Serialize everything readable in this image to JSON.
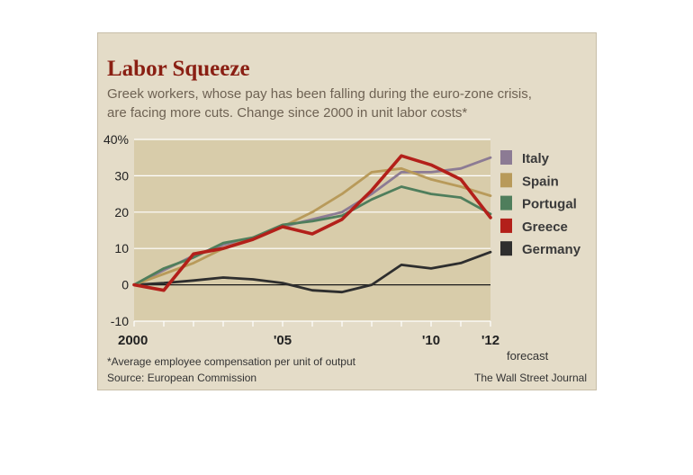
{
  "chart_data": {
    "type": "line",
    "title": "Labor Squeeze",
    "subtitle_line1": "Greek workers, whose pay has been falling during the euro-zone crisis,",
    "subtitle_line2": "are facing more cuts. Change since 2000 in unit labor costs*",
    "x": [
      2000,
      2001,
      2002,
      2003,
      2004,
      2005,
      2006,
      2007,
      2008,
      2009,
      2010,
      2011,
      2012
    ],
    "x_tick_labels": [
      {
        "value": 2000,
        "label": "2000"
      },
      {
        "value": 2005,
        "label": "'05"
      },
      {
        "value": 2010,
        "label": "'10"
      },
      {
        "value": 2012,
        "label": "'12"
      }
    ],
    "forecast_label": "forecast",
    "y_tick_labels": [
      "40%",
      "30",
      "20",
      "10",
      "0",
      "-10"
    ],
    "y_ticks": [
      40,
      30,
      20,
      10,
      0,
      -10
    ],
    "ylim": [
      -10,
      40
    ],
    "xlim": [
      2000,
      2012
    ],
    "grid": true,
    "legend_position": "right",
    "series": [
      {
        "name": "Italy",
        "color": "#8c7b94",
        "values": [
          0,
          4,
          8,
          11,
          13,
          16,
          18,
          20,
          25,
          31,
          31,
          32,
          35
        ]
      },
      {
        "name": "Spain",
        "color": "#b89a5a",
        "values": [
          0,
          3,
          6,
          10,
          13,
          16,
          20,
          25,
          31,
          32,
          29,
          27,
          24.5
        ]
      },
      {
        "name": "Portugal",
        "color": "#4f7e5c",
        "values": [
          0,
          4.5,
          7.5,
          11.5,
          13,
          16.5,
          17.5,
          19,
          23.5,
          27,
          25,
          24,
          19.5
        ]
      },
      {
        "name": "Greece",
        "color": "#b3201a",
        "values": [
          0,
          -1.5,
          8.5,
          10,
          12.5,
          16,
          14,
          18,
          26,
          35.5,
          33,
          29,
          18.5
        ]
      },
      {
        "name": "Germany",
        "color": "#2e2e2e",
        "values": [
          0,
          0.5,
          1.2,
          2,
          1.5,
          0.5,
          -1.5,
          -2,
          0,
          5.5,
          4.5,
          6,
          9
        ]
      }
    ],
    "footnote": "*Average employee compensation per unit of output",
    "source": "Source: European Commission",
    "credit": "The Wall Street Journal"
  },
  "colors": {
    "card_background": "#e4dcc8",
    "plot_background": "#d8ccaa",
    "title": "#8a1f13",
    "gridline": "#ffffff"
  }
}
